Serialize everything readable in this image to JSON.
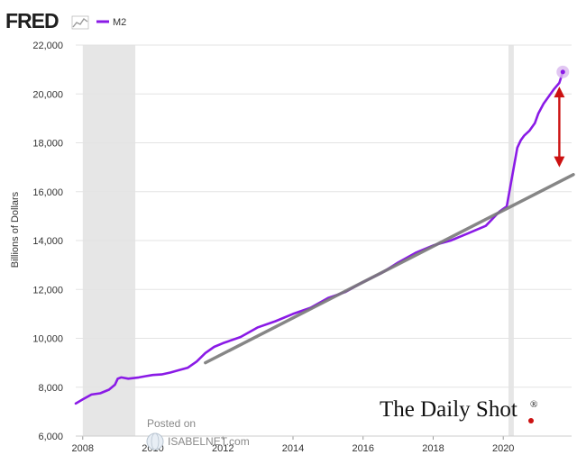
{
  "branding": {
    "fred_logo": "FRED",
    "daily_shot": "The Daily Shot",
    "daily_shot_mark": "®",
    "posted_on": "Posted on",
    "isabelnet": "ISABELNET.com"
  },
  "colors": {
    "series": "#8a1ae6",
    "trend": "#7a7a7a",
    "recession": "#e6e6e6",
    "grid": "#e3e3e3",
    "arrow": "#cc1111",
    "highlight": "#d9b8ef"
  },
  "chart_data": {
    "type": "line",
    "title": "",
    "xlabel": "",
    "ylabel": "Billions of Dollars",
    "xlim": [
      2007.8,
      2021.95
    ],
    "ylim": [
      6000,
      22000
    ],
    "yticks": [
      6000,
      8000,
      10000,
      12000,
      14000,
      16000,
      18000,
      20000,
      22000
    ],
    "ytick_labels": [
      "6,000",
      "8,000",
      "10,000",
      "12,000",
      "14,000",
      "16,000",
      "18,000",
      "20,000",
      "22,000"
    ],
    "xticks": [
      2008,
      2010,
      2012,
      2014,
      2016,
      2018,
      2020
    ],
    "xtick_labels": [
      "2008",
      "2010",
      "2012",
      "2014",
      "2016",
      "2018",
      "2020"
    ],
    "grid": true,
    "legend": {
      "position": "top-left",
      "entries": [
        "M2"
      ]
    },
    "recessions": [
      [
        2008.0,
        2009.5
      ],
      [
        2020.15,
        2020.3
      ]
    ],
    "series": [
      {
        "name": "M2",
        "x": [
          2007.8,
          2008.0,
          2008.25,
          2008.5,
          2008.75,
          2008.92,
          2009.0,
          2009.1,
          2009.3,
          2009.6,
          2009.8,
          2010.0,
          2010.25,
          2010.5,
          2010.75,
          2011.0,
          2011.25,
          2011.5,
          2011.75,
          2012.0,
          2012.5,
          2013.0,
          2013.5,
          2014.0,
          2014.5,
          2015.0,
          2015.5,
          2016.0,
          2016.5,
          2017.0,
          2017.5,
          2018.0,
          2018.5,
          2019.0,
          2019.5,
          2019.9,
          2020.1,
          2020.2,
          2020.3,
          2020.4,
          2020.5,
          2020.6,
          2020.75,
          2020.9,
          2021.0,
          2021.15,
          2021.3,
          2021.45,
          2021.6,
          2021.7
        ],
        "values": [
          7330,
          7500,
          7700,
          7750,
          7900,
          8100,
          8350,
          8400,
          8350,
          8400,
          8450,
          8500,
          8520,
          8600,
          8700,
          8800,
          9050,
          9400,
          9650,
          9800,
          10050,
          10450,
          10700,
          11000,
          11250,
          11650,
          11900,
          12300,
          12650,
          13100,
          13500,
          13800,
          14000,
          14300,
          14600,
          15200,
          15400,
          16200,
          17000,
          17800,
          18100,
          18300,
          18500,
          18800,
          19200,
          19600,
          19900,
          20200,
          20450,
          20900
        ]
      }
    ],
    "trend_line": {
      "x": [
        2011.5,
        2022.0
      ],
      "values": [
        9000,
        16700
      ]
    },
    "annotations": [
      {
        "type": "double-arrow",
        "x": 2021.6,
        "from": 17000,
        "to": 20300
      },
      {
        "type": "highlight-dot",
        "x": 2021.7,
        "y": 20900
      }
    ]
  }
}
